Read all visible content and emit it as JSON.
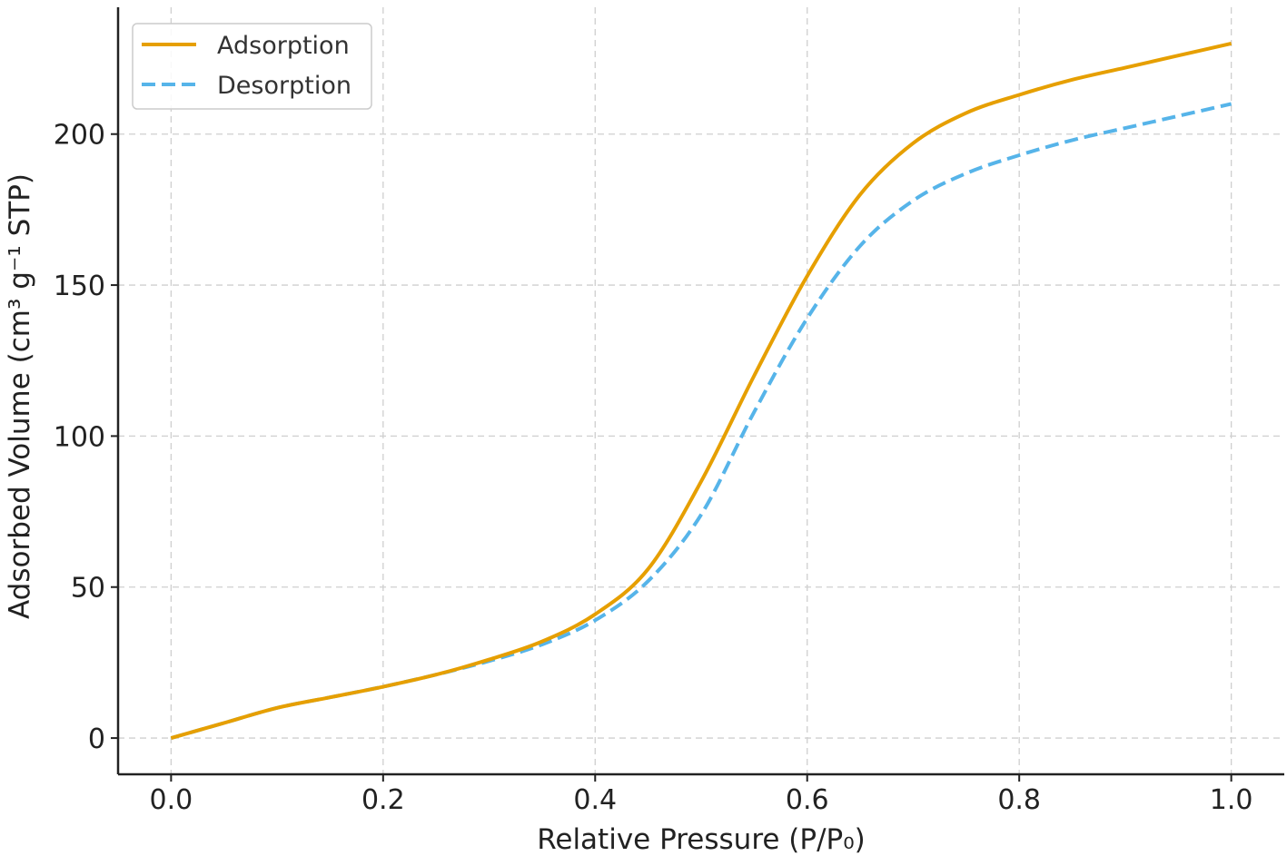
{
  "chart_data": {
    "type": "line",
    "title": "",
    "xlabel": "Relative Pressure (P/P₀)",
    "ylabel": "Adsorbed Volume (cm³ g⁻¹ STP)",
    "xlim": [
      -0.05,
      1.05
    ],
    "ylim": [
      -12,
      242
    ],
    "xticks": [
      0.0,
      0.2,
      0.4,
      0.6,
      0.8,
      1.0
    ],
    "xtick_labels": [
      "0.0",
      "0.2",
      "0.4",
      "0.6",
      "0.8",
      "1.0"
    ],
    "yticks": [
      0,
      50,
      100,
      150,
      200
    ],
    "ytick_labels": [
      "0",
      "50",
      "100",
      "150",
      "200"
    ],
    "grid": true,
    "legend_position": "top-left",
    "x": [
      0.0,
      0.05,
      0.1,
      0.15,
      0.2,
      0.25,
      0.3,
      0.35,
      0.4,
      0.45,
      0.5,
      0.55,
      0.6,
      0.65,
      0.7,
      0.75,
      0.8,
      0.85,
      0.9,
      0.95,
      1.0
    ],
    "series": [
      {
        "name": "Adsorption",
        "color": "#E69F00",
        "style": "solid",
        "values": [
          0,
          5,
          10,
          13.5,
          17,
          21,
          26,
          32,
          41,
          56,
          85,
          120,
          153,
          180,
          197,
          207,
          213,
          218,
          222,
          226,
          230
        ]
      },
      {
        "name": "Desorption",
        "color": "#56B4E9",
        "style": "dashed",
        "values": [
          0,
          5,
          10,
          13.5,
          17,
          21,
          25.5,
          31,
          39,
          52,
          74,
          108,
          139,
          163,
          178,
          187,
          193,
          198,
          202,
          206,
          210
        ]
      }
    ]
  }
}
